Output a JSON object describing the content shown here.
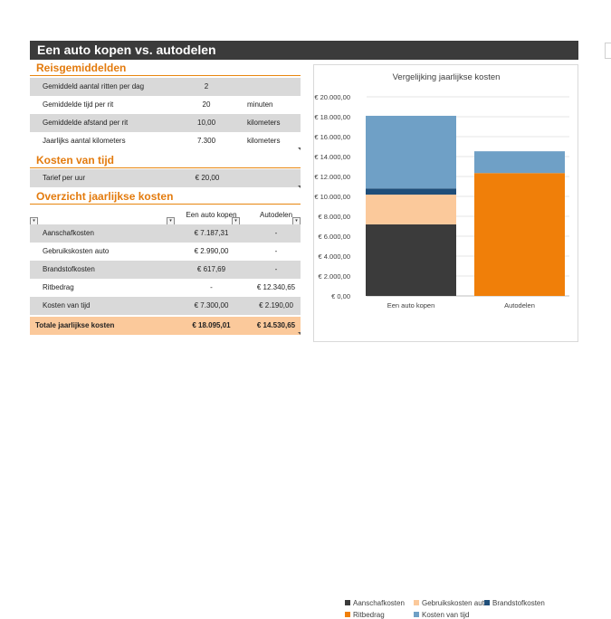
{
  "title": "Een auto kopen vs. autodelen",
  "sections": {
    "reisgemiddelden": "Reisgemiddelden",
    "kosten_van_tijd": "Kosten van tijd",
    "overzicht": "Overzicht jaarlijkse kosten"
  },
  "reisgemiddelden_rows": [
    {
      "label": "Gemiddeld aantal ritten per dag",
      "value": "2",
      "unit": ""
    },
    {
      "label": "Gemiddelde tijd per rit",
      "value": "20",
      "unit": "minuten"
    },
    {
      "label": "Gemiddelde afstand per rit",
      "value": "10,00",
      "unit": "kilometers"
    },
    {
      "label": "Jaarlijks aantal kilometers",
      "value": "7.300",
      "unit": "kilometers"
    }
  ],
  "kosten_rows": [
    {
      "label": "Tarief per uur",
      "value": "€ 20,00"
    }
  ],
  "overzicht_table": {
    "headers": [
      "",
      "Een auto kopen",
      "Autodelen"
    ],
    "rows": [
      [
        "Aanschafkosten",
        "€ 7.187,31",
        "-"
      ],
      [
        "Gebruikskosten auto",
        "€ 2.990,00",
        "-"
      ],
      [
        "Brandstofkosten",
        "€ 617,69",
        "-"
      ],
      [
        "Ritbedrag",
        "-",
        "€ 12.340,65"
      ],
      [
        "Kosten van tijd",
        "€ 7.300,00",
        "€ 2.190,00"
      ]
    ],
    "total": [
      "Totale jaarlijkse kosten",
      "€ 18.095,01",
      "€ 14.530,65"
    ]
  },
  "colors": {
    "orange": "#e8860f",
    "aanschaf": "#3b3b3b",
    "gebruik": "#fbc99b",
    "brandstof": "#1f4e79",
    "ritbedrag": "#f07f09",
    "tijd": "#6fa0c6"
  },
  "chart_data": {
    "type": "bar",
    "title": "Vergelijking jaarlijkse kosten",
    "categories": [
      "Een auto kopen",
      "Autodelen"
    ],
    "series": [
      {
        "name": "Aanschafkosten",
        "values": [
          7187.31,
          0
        ],
        "color": "#3b3b3b"
      },
      {
        "name": "Gebruikskosten auto",
        "values": [
          2990.0,
          0
        ],
        "color": "#fbc99b"
      },
      {
        "name": "Brandstofkosten",
        "values": [
          617.69,
          0
        ],
        "color": "#1f4e79"
      },
      {
        "name": "Ritbedrag",
        "values": [
          0,
          12340.65
        ],
        "color": "#f07f09"
      },
      {
        "name": "Kosten van tijd",
        "values": [
          7300.0,
          2190.0
        ],
        "color": "#6fa0c6"
      }
    ],
    "stacked": true,
    "ylim": [
      0,
      20000
    ],
    "yticks": [
      "€ 0,00",
      "€ 2.000,00",
      "€ 4.000,00",
      "€ 6.000,00",
      "€ 8.000,00",
      "€ 10.000,00",
      "€ 12.000,00",
      "€ 14.000,00",
      "€ 16.000,00",
      "€ 18.000,00",
      "€ 20.000,00"
    ],
    "grid": true,
    "legend": "bottom"
  }
}
